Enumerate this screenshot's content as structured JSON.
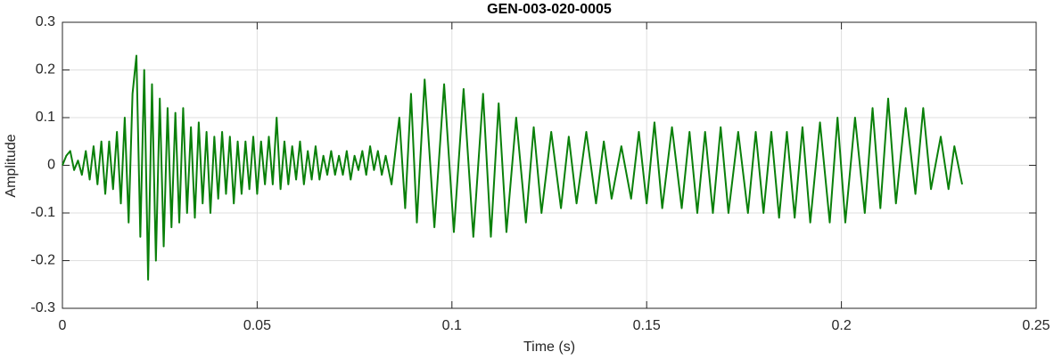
{
  "chart_data": {
    "type": "line",
    "title": "GEN-003-020-0005",
    "x_label": "Time (s)",
    "y_label": "Amplitude",
    "x": [
      0,
      0.001,
      0.002,
      0.003,
      0.004,
      0.005,
      0.006,
      0.007,
      0.008,
      0.009,
      0.01,
      0.011,
      0.012,
      0.013,
      0.014,
      0.015,
      0.016,
      0.017,
      0.018,
      0.019,
      0.02,
      0.021,
      0.022,
      0.023,
      0.024,
      0.025,
      0.026,
      0.027,
      0.028,
      0.029,
      0.03,
      0.031,
      0.032,
      0.033,
      0.034,
      0.035,
      0.036,
      0.037,
      0.038,
      0.039,
      0.04,
      0.041,
      0.042,
      0.043,
      0.044,
      0.045,
      0.046,
      0.047,
      0.048,
      0.049,
      0.05,
      0.051,
      0.052,
      0.053,
      0.054,
      0.055,
      0.056,
      0.057,
      0.058,
      0.059,
      0.06,
      0.061,
      0.062,
      0.063,
      0.064,
      0.065,
      0.066,
      0.067,
      0.068,
      0.069,
      0.07,
      0.071,
      0.072,
      0.073,
      0.074,
      0.075,
      0.076,
      0.077,
      0.078,
      0.079,
      0.08,
      0.081,
      0.082,
      0.083,
      0.0845,
      0.0865,
      0.088,
      0.0895,
      0.091,
      0.093,
      0.0955,
      0.098,
      0.1005,
      0.103,
      0.1055,
      0.108,
      0.11,
      0.112,
      0.114,
      0.1165,
      0.119,
      0.121,
      0.123,
      0.1255,
      0.128,
      0.13,
      0.132,
      0.1345,
      0.137,
      0.139,
      0.141,
      0.1435,
      0.146,
      0.148,
      0.15,
      0.152,
      0.154,
      0.1565,
      0.159,
      0.161,
      0.163,
      0.165,
      0.167,
      0.169,
      0.171,
      0.1735,
      0.176,
      0.178,
      0.18,
      0.182,
      0.184,
      0.186,
      0.188,
      0.19,
      0.192,
      0.1945,
      0.197,
      0.199,
      0.201,
      0.2035,
      0.206,
      0.208,
      0.21,
      0.212,
      0.214,
      0.2165,
      0.219,
      0.221,
      0.223,
      0.2255,
      0.2275,
      0.229,
      0.231
    ],
    "series": [
      {
        "color": "#0a800a",
        "values": [
          0,
          0.02,
          0.03,
          -0.01,
          0.01,
          -0.02,
          0.03,
          -0.03,
          0.04,
          -0.04,
          0.05,
          -0.06,
          0.05,
          -0.05,
          0.07,
          -0.08,
          0.1,
          -0.12,
          0.15,
          0.23,
          -0.15,
          0.2,
          -0.24,
          0.17,
          -0.2,
          0.14,
          -0.17,
          0.12,
          -0.13,
          0.11,
          -0.12,
          0.12,
          -0.1,
          0.08,
          -0.11,
          0.09,
          -0.08,
          0.07,
          -0.1,
          0.06,
          -0.07,
          0.07,
          -0.06,
          0.06,
          -0.08,
          0.05,
          -0.06,
          0.05,
          -0.05,
          0.06,
          -0.06,
          0.05,
          -0.04,
          0.06,
          -0.04,
          0.1,
          -0.05,
          0.05,
          -0.04,
          0.04,
          -0.03,
          0.05,
          -0.04,
          0.03,
          -0.03,
          0.04,
          -0.03,
          0.02,
          -0.02,
          0.03,
          -0.02,
          0.02,
          -0.02,
          0.03,
          -0.03,
          0.02,
          -0.01,
          0.03,
          -0.02,
          0.04,
          -0.01,
          0.03,
          -0.02,
          0.02,
          -0.04,
          0.1,
          -0.09,
          0.15,
          -0.12,
          0.18,
          -0.13,
          0.17,
          -0.14,
          0.16,
          -0.15,
          0.15,
          -0.15,
          0.13,
          -0.14,
          0.1,
          -0.12,
          0.08,
          -0.1,
          0.07,
          -0.09,
          0.06,
          -0.08,
          0.07,
          -0.08,
          0.05,
          -0.07,
          0.04,
          -0.07,
          0.07,
          -0.08,
          0.09,
          -0.09,
          0.08,
          -0.09,
          0.07,
          -0.1,
          0.07,
          -0.1,
          0.08,
          -0.1,
          0.07,
          -0.1,
          0.07,
          -0.1,
          0.07,
          -0.11,
          0.07,
          -0.11,
          0.08,
          -0.12,
          0.09,
          -0.12,
          0.1,
          -0.12,
          0.1,
          -0.1,
          0.12,
          -0.09,
          0.14,
          -0.08,
          0.12,
          -0.06,
          0.12,
          -0.05,
          0.06,
          -0.05,
          0.04,
          -0.04
        ]
      }
    ],
    "xlim": [
      0,
      0.25
    ],
    "xticks": [
      0,
      0.05,
      0.1,
      0.15,
      0.2,
      0.25
    ],
    "ylim": [
      -0.3,
      0.3
    ],
    "yticks": [
      -0.3,
      -0.2,
      -0.1,
      0,
      0.1,
      0.2,
      0.3
    ],
    "grid": true
  }
}
